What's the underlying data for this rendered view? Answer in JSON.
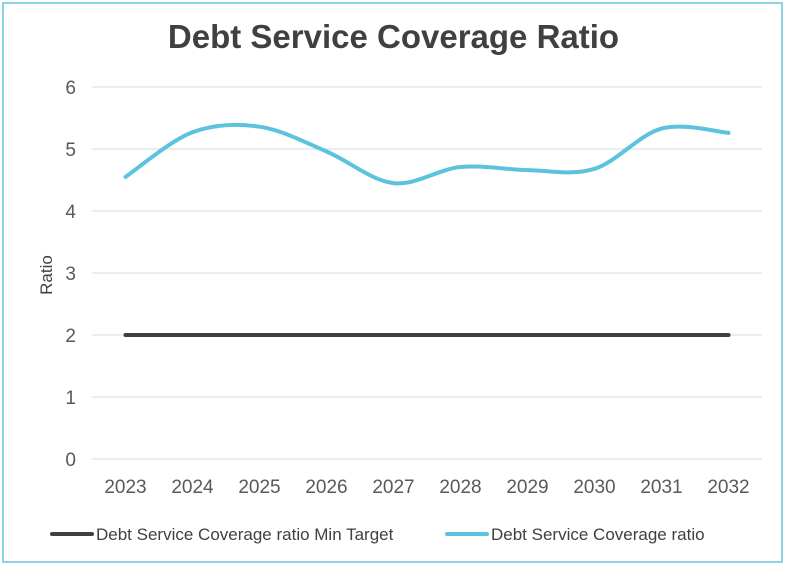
{
  "chart_data": {
    "type": "line",
    "title": "Debt Service Coverage Ratio",
    "xlabel": "",
    "ylabel": "Ratio",
    "categories": [
      "2023",
      "2024",
      "2025",
      "2026",
      "2027",
      "2028",
      "2029",
      "2030",
      "2031",
      "2032"
    ],
    "ylim": [
      0,
      6
    ],
    "yticks": [
      0,
      1,
      2,
      3,
      4,
      5,
      6
    ],
    "grid": true,
    "legend_position": "bottom",
    "series": [
      {
        "name": "Debt Service Coverage ratio Min Target",
        "values": [
          2,
          2,
          2,
          2,
          2,
          2,
          2,
          2,
          2,
          2
        ],
        "color": "#404040",
        "smooth": false
      },
      {
        "name": "Debt Service Coverage ratio",
        "values": [
          4.55,
          5.27,
          5.36,
          4.96,
          4.45,
          4.71,
          4.66,
          4.68,
          5.33,
          5.26
        ],
        "color": "#5bc3de",
        "smooth": true
      }
    ]
  }
}
